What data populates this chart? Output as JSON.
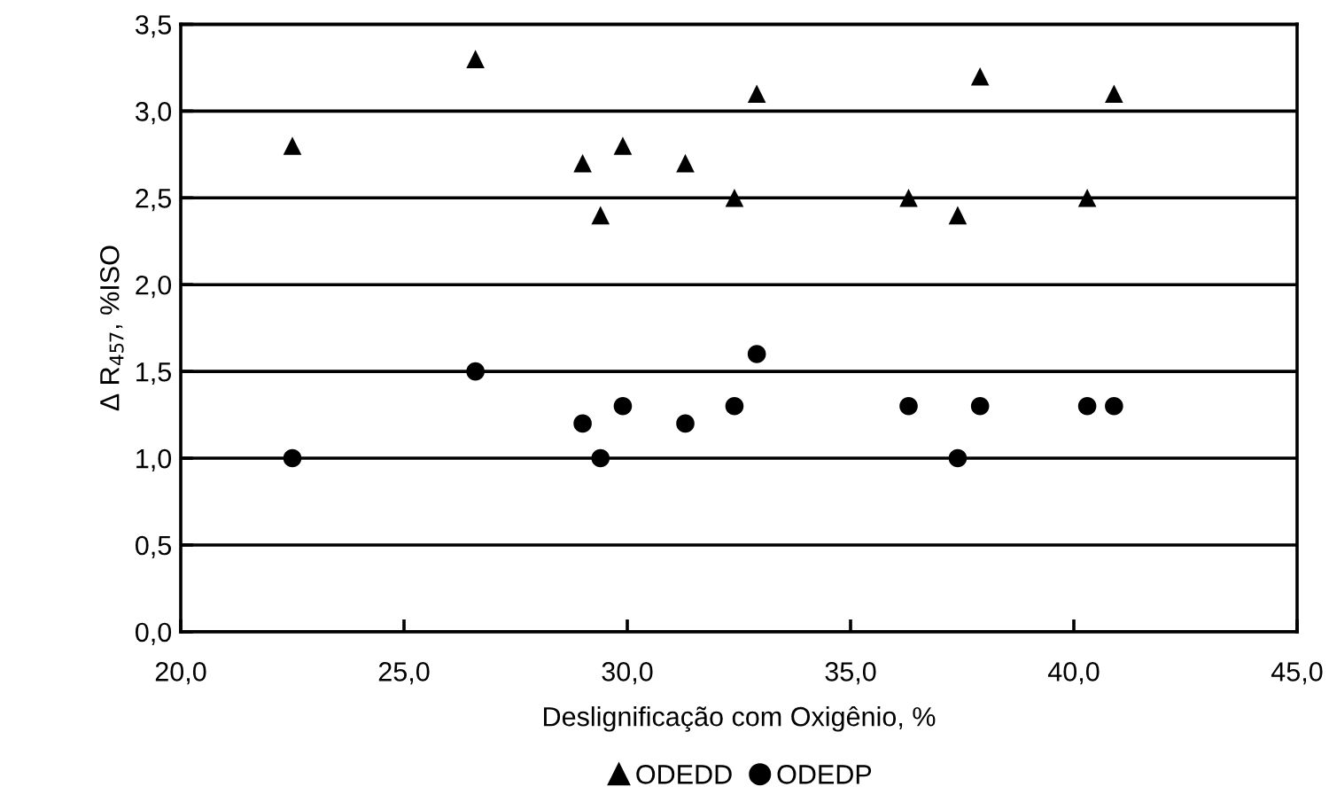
{
  "chart_data": {
    "type": "scatter",
    "xlabel": "Deslignificação com Oxigênio, %",
    "ylabel": "Δ R$_{457}$, %ISO",
    "x": [
      22.5,
      26.6,
      29.0,
      29.4,
      29.9,
      31.3,
      32.4,
      32.9,
      36.3,
      37.4,
      37.9,
      40.3,
      40.9
    ],
    "series": [
      {
        "name": "ODEDD",
        "color": "#000000",
        "marker": "triangle",
        "values": [
          2.8,
          3.3,
          2.7,
          2.4,
          2.8,
          2.7,
          2.5,
          3.1,
          2.5,
          2.4,
          3.2,
          2.5,
          3.1
        ]
      },
      {
        "name": "ODEDP",
        "color": "#000000",
        "marker": "circle",
        "values": [
          1.0,
          1.5,
          1.2,
          1.0,
          1.3,
          1.2,
          1.3,
          1.6,
          1.3,
          1.0,
          1.3,
          1.3,
          1.3
        ]
      }
    ],
    "xlim": [
      20,
      45
    ],
    "xticks": [
      {
        "value": 20,
        "label": "20,0"
      },
      {
        "value": 25,
        "label": "25,0"
      },
      {
        "value": 30,
        "label": "30,0"
      },
      {
        "value": 35,
        "label": "35,0"
      },
      {
        "value": 40,
        "label": "40,0"
      },
      {
        "value": 45,
        "label": "45,0"
      }
    ],
    "ylim": [
      0,
      3.5
    ],
    "yticks": [
      {
        "value": 0,
        "label": "0,0"
      },
      {
        "value": 0.5,
        "label": "0,5"
      },
      {
        "value": 1,
        "label": "1,0"
      },
      {
        "value": 1.5,
        "label": "1,5"
      },
      {
        "value": 2,
        "label": "2,0"
      },
      {
        "value": 2.5,
        "label": "2,5"
      },
      {
        "value": 3,
        "label": "3,0"
      },
      {
        "value": 3.5,
        "label": "3,5"
      }
    ],
    "grid": "y",
    "legend": "bottom"
  }
}
